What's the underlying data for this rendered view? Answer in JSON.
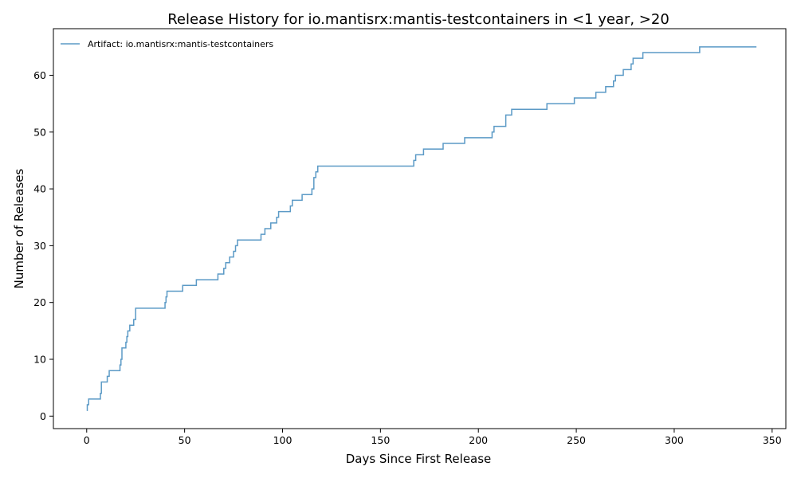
{
  "chart_data": {
    "type": "line",
    "step": "post",
    "title": "Release History for io.mantisrx:mantis-testcontainers in <1 year, >20",
    "xlabel": "Days Since First Release",
    "ylabel": "Number of Releases",
    "xlim": [
      -17,
      357
    ],
    "ylim": [
      -2.2,
      68.2
    ],
    "xticks": [
      0,
      50,
      100,
      150,
      200,
      250,
      300,
      350
    ],
    "yticks": [
      0,
      10,
      20,
      30,
      40,
      50,
      60
    ],
    "grid": false,
    "legend_position": "top-left",
    "series": [
      {
        "name": "Artifact: io.mantisrx:mantis-testcontainers",
        "color": "#5b9ac6",
        "x": [
          0,
          0.3,
          1,
          7,
          7.5,
          10.5,
          11.5,
          17,
          17.5,
          18,
          20,
          20.5,
          21,
          22,
          24,
          25,
          40,
          40.5,
          41,
          49,
          56,
          67,
          70,
          71,
          73,
          75,
          76,
          77,
          89,
          91,
          94,
          97,
          98,
          104,
          105,
          110,
          115,
          116,
          117,
          118,
          119,
          167,
          168,
          172,
          182,
          193,
          207,
          208,
          214,
          217,
          235,
          249,
          260,
          265,
          269,
          270,
          274,
          278,
          279,
          284,
          313,
          342
        ],
        "y": [
          1,
          2,
          3,
          4,
          6,
          7,
          8,
          9,
          10,
          12,
          13,
          14,
          15,
          16,
          17,
          19,
          20,
          21,
          22,
          23,
          24,
          25,
          26,
          27,
          28,
          29,
          30,
          31,
          32,
          33,
          34,
          35,
          36,
          37,
          38,
          39,
          40,
          42,
          43,
          44,
          44,
          45,
          46,
          47,
          48,
          49,
          50,
          51,
          53,
          54,
          55,
          56,
          57,
          58,
          59,
          60,
          61,
          62,
          63,
          64,
          65,
          65
        ]
      }
    ]
  }
}
